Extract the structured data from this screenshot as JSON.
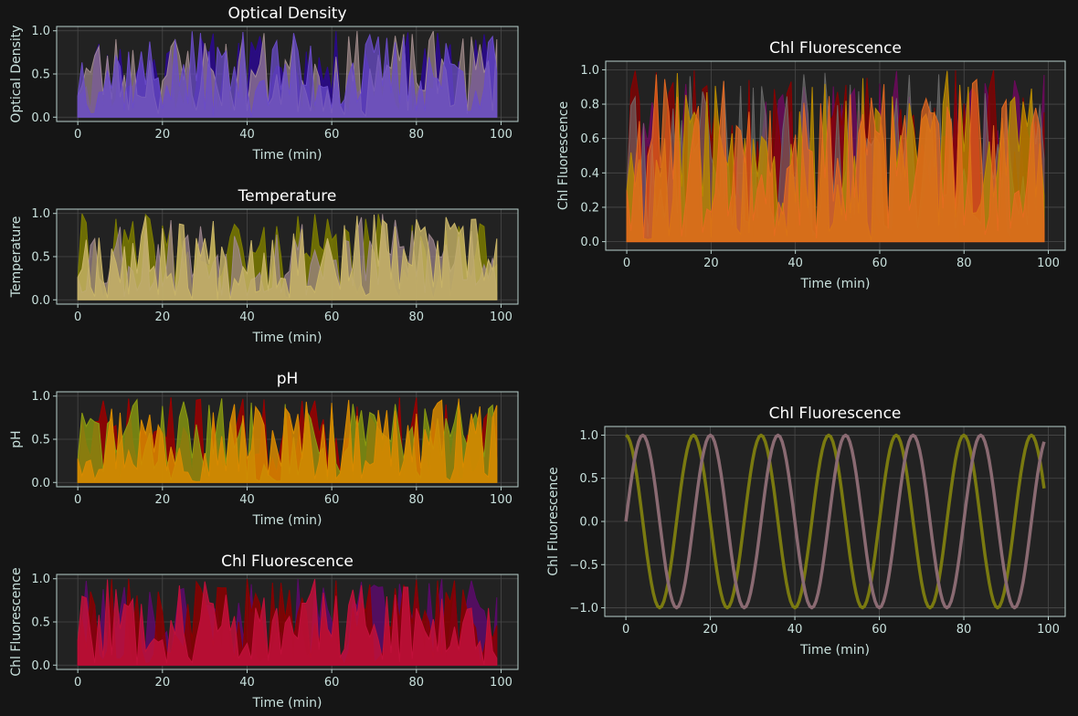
{
  "chart_data": [
    {
      "id": "od",
      "type": "area",
      "title": "Optical Density",
      "xlabel": "Time (min)",
      "ylabel": "Optical Density",
      "xlim": [
        -5,
        104
      ],
      "ylim": [
        -0.05,
        1.05
      ],
      "xticks": [
        0,
        20,
        40,
        60,
        80,
        100
      ],
      "yticks": [
        0.0,
        0.5,
        1.0
      ],
      "ytick_labels": [
        "0.0",
        "0.5",
        "1.0"
      ],
      "grid": true,
      "legend": "none",
      "series": [
        {
          "color": "#2a0a8a",
          "opacity": 0.9,
          "seed": 11
        },
        {
          "color": "#b09898",
          "opacity": 0.6,
          "seed": 23
        },
        {
          "color": "#6a4cc8",
          "opacity": 0.75,
          "seed": 37
        }
      ]
    },
    {
      "id": "temp",
      "type": "area",
      "title": "Temperature",
      "xlabel": "Time (min)",
      "ylabel": "Temperature",
      "xlim": [
        -5,
        104
      ],
      "ylim": [
        -0.05,
        1.05
      ],
      "xticks": [
        0,
        20,
        40,
        60,
        80,
        100
      ],
      "yticks": [
        0.0,
        0.5,
        1.0
      ],
      "ytick_labels": [
        "0.0",
        "0.5",
        "1.0"
      ],
      "grid": true,
      "legend": "none",
      "series": [
        {
          "color": "#7a7a00",
          "opacity": 0.85,
          "seed": 41
        },
        {
          "color": "#a08890",
          "opacity": 0.7,
          "seed": 53
        },
        {
          "color": "#c8b468",
          "opacity": 0.8,
          "seed": 67
        }
      ]
    },
    {
      "id": "ph",
      "type": "area",
      "title": "pH",
      "xlabel": "Time (min)",
      "ylabel": "pH",
      "xlim": [
        -5,
        104
      ],
      "ylim": [
        -0.05,
        1.05
      ],
      "xticks": [
        0,
        20,
        40,
        60,
        80,
        100
      ],
      "yticks": [
        0.0,
        0.5,
        1.0
      ],
      "ytick_labels": [
        "0.0",
        "0.5",
        "1.0"
      ],
      "grid": true,
      "legend": "none",
      "series": [
        {
          "color": "#9a0000",
          "opacity": 0.85,
          "seed": 71
        },
        {
          "color": "#8a9a10",
          "opacity": 0.8,
          "seed": 83
        },
        {
          "color": "#d88a00",
          "opacity": 0.85,
          "seed": 97
        }
      ]
    },
    {
      "id": "chl1",
      "type": "area",
      "title": "Chl Fluorescence",
      "xlabel": "Time (min)",
      "ylabel": "Chl Fluorescence",
      "xlim": [
        -5,
        104
      ],
      "ylim": [
        -0.05,
        1.05
      ],
      "xticks": [
        0,
        20,
        40,
        60,
        80,
        100
      ],
      "yticks": [
        0.0,
        0.5,
        1.0
      ],
      "ytick_labels": [
        "0.0",
        "0.5",
        "1.0"
      ],
      "grid": true,
      "legend": "none",
      "series": [
        {
          "color": "#5a0a6a",
          "opacity": 0.85,
          "seed": 101
        },
        {
          "color": "#8a0000",
          "opacity": 0.85,
          "seed": 113
        },
        {
          "color": "#c0103a",
          "opacity": 0.85,
          "seed": 127
        }
      ]
    },
    {
      "id": "chl2",
      "type": "area",
      "title": "Chl Fluorescence",
      "xlabel": "Time (min)",
      "ylabel": "Chl Fluorescence",
      "xlim": [
        -5,
        104
      ],
      "ylim": [
        -0.05,
        1.05
      ],
      "xticks": [
        0,
        20,
        40,
        60,
        80,
        100
      ],
      "yticks": [
        0.0,
        0.2,
        0.4,
        0.6,
        0.8,
        1.0
      ],
      "ytick_labels": [
        "0.0",
        "0.2",
        "0.4",
        "0.6",
        "0.8",
        "1.0"
      ],
      "grid": true,
      "legend": "none",
      "series": [
        {
          "color": "#6a0a5a",
          "opacity": 0.85,
          "seed": 131
        },
        {
          "color": "#8a0000",
          "opacity": 0.75,
          "seed": 139
        },
        {
          "color": "#707070",
          "opacity": 0.6,
          "seed": 149
        },
        {
          "color": "#b88a00",
          "opacity": 0.8,
          "seed": 157
        },
        {
          "color": "#e86a20",
          "opacity": 0.7,
          "seed": 163
        }
      ]
    },
    {
      "id": "chl3",
      "type": "line",
      "title": "Chl Fluorescence",
      "xlabel": "Time (min)",
      "ylabel": "Chl Fluorescence",
      "xlim": [
        -5,
        104
      ],
      "ylim": [
        -1.1,
        1.1
      ],
      "xticks": [
        0,
        20,
        40,
        60,
        80,
        100
      ],
      "yticks": [
        -1.0,
        -0.5,
        0.0,
        0.5,
        1.0
      ],
      "ytick_labels": [
        "−1.0",
        "−0.5",
        "0.0",
        "0.5",
        "1.0"
      ],
      "grid": true,
      "legend": "none",
      "x_range": [
        0,
        99
      ],
      "series": [
        {
          "color": "#7a7a10",
          "function": "cos",
          "period": 16,
          "line_width": 3.5
        },
        {
          "color": "#8a6a72",
          "function": "sin",
          "period": 16,
          "line_width": 3.5
        }
      ]
    }
  ]
}
